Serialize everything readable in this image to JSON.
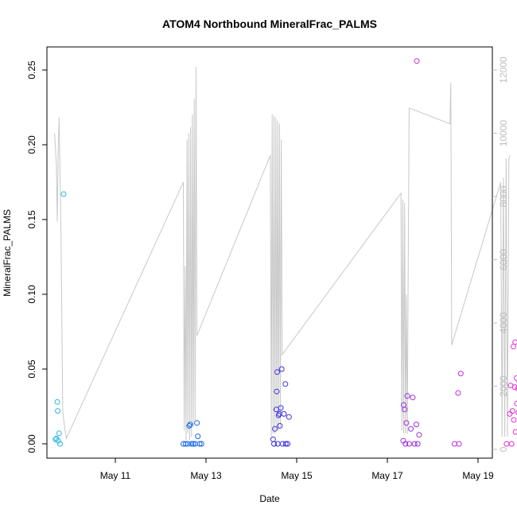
{
  "chart_data": {
    "type": "scatter",
    "title": "ATOM4 Northbound MineralFrac_PALMS",
    "xlabel": "Date",
    "ylabel": "MineralFrac_PALMS",
    "x_ticks": [
      "May 11",
      "May 13",
      "May 15",
      "May 17",
      "May 19"
    ],
    "ylim": [
      0,
      0.26
    ],
    "y_ticks": [
      0.0,
      0.05,
      0.1,
      0.15,
      0.2,
      0.25
    ],
    "y2lim": [
      0,
      12200
    ],
    "y2_ticks": [
      0,
      2000,
      4000,
      6000,
      8000,
      10000,
      12000
    ],
    "grid": false,
    "points": [
      {
        "x": 9.72,
        "y": 0.028,
        "color": "#2fb7e3"
      },
      {
        "x": 9.73,
        "y": 0.022,
        "color": "#2fb7e3"
      },
      {
        "x": 9.68,
        "y": 0.003,
        "color": "#2fb7e3"
      },
      {
        "x": 9.7,
        "y": 0.0035,
        "color": "#2fb7e3"
      },
      {
        "x": 9.74,
        "y": 0.002,
        "color": "#2fb7e3"
      },
      {
        "x": 9.76,
        "y": 0.007,
        "color": "#2fb7e3"
      },
      {
        "x": 9.78,
        "y": 0.0,
        "color": "#2fb7e3"
      },
      {
        "x": 9.86,
        "y": 0.167,
        "color": "#2fb7e3"
      },
      {
        "x": 12.5,
        "y": 0.0,
        "color": "#1a67e8"
      },
      {
        "x": 12.55,
        "y": 0.0,
        "color": "#1a67e8"
      },
      {
        "x": 12.6,
        "y": 0.0,
        "color": "#1a67e8"
      },
      {
        "x": 12.63,
        "y": 0.012,
        "color": "#1a67e8"
      },
      {
        "x": 12.65,
        "y": 0.013,
        "color": "#1a67e8"
      },
      {
        "x": 12.68,
        "y": 0.0,
        "color": "#1a67e8"
      },
      {
        "x": 12.72,
        "y": 0.0,
        "color": "#1a67e8"
      },
      {
        "x": 12.76,
        "y": 0.0,
        "color": "#1a67e8"
      },
      {
        "x": 12.8,
        "y": 0.014,
        "color": "#1a67e8"
      },
      {
        "x": 12.82,
        "y": 0.005,
        "color": "#1a67e8"
      },
      {
        "x": 12.86,
        "y": 0.0,
        "color": "#1a67e8"
      },
      {
        "x": 12.9,
        "y": 0.0,
        "color": "#1a67e8"
      },
      {
        "x": 14.48,
        "y": 0.003,
        "color": "#3a2fe0"
      },
      {
        "x": 14.5,
        "y": 0.0,
        "color": "#3a2fe0"
      },
      {
        "x": 14.52,
        "y": 0.01,
        "color": "#3a2fe0"
      },
      {
        "x": 14.55,
        "y": 0.023,
        "color": "#3a2fe0"
      },
      {
        "x": 14.56,
        "y": 0.035,
        "color": "#3a2fe0"
      },
      {
        "x": 14.57,
        "y": 0.048,
        "color": "#3a2fe0"
      },
      {
        "x": 14.58,
        "y": 0.0,
        "color": "#3a2fe0"
      },
      {
        "x": 14.6,
        "y": 0.019,
        "color": "#3a2fe0"
      },
      {
        "x": 14.62,
        "y": 0.02,
        "color": "#3a2fe0"
      },
      {
        "x": 14.63,
        "y": 0.012,
        "color": "#3a2fe0"
      },
      {
        "x": 14.65,
        "y": 0.024,
        "color": "#3a2fe0"
      },
      {
        "x": 14.67,
        "y": 0.05,
        "color": "#3a2fe0"
      },
      {
        "x": 14.69,
        "y": 0.0,
        "color": "#3a2fe0"
      },
      {
        "x": 14.72,
        "y": 0.02,
        "color": "#3a2fe0"
      },
      {
        "x": 14.75,
        "y": 0.04,
        "color": "#3a2fe0"
      },
      {
        "x": 14.76,
        "y": 0.0,
        "color": "#3a2fe0"
      },
      {
        "x": 14.8,
        "y": 0.0,
        "color": "#3a2fe0"
      },
      {
        "x": 14.83,
        "y": 0.018,
        "color": "#3a2fe0"
      },
      {
        "x": 17.36,
        "y": 0.026,
        "color": "#9a2fe3"
      },
      {
        "x": 17.38,
        "y": 0.023,
        "color": "#9a2fe3"
      },
      {
        "x": 17.35,
        "y": 0.002,
        "color": "#9a2fe3"
      },
      {
        "x": 17.4,
        "y": 0.0,
        "color": "#9a2fe3"
      },
      {
        "x": 17.42,
        "y": 0.014,
        "color": "#9a2fe3"
      },
      {
        "x": 17.44,
        "y": 0.032,
        "color": "#9a2fe3"
      },
      {
        "x": 17.48,
        "y": 0.0,
        "color": "#9a2fe3"
      },
      {
        "x": 17.52,
        "y": 0.01,
        "color": "#9a2fe3"
      },
      {
        "x": 17.56,
        "y": 0.031,
        "color": "#9a2fe3"
      },
      {
        "x": 17.6,
        "y": 0.0,
        "color": "#9a2fe3"
      },
      {
        "x": 17.64,
        "y": 0.013,
        "color": "#9a2fe3"
      },
      {
        "x": 17.67,
        "y": 0.0,
        "color": "#9a2fe3"
      },
      {
        "x": 17.7,
        "y": 0.006,
        "color": "#9a2fe3"
      },
      {
        "x": 17.65,
        "y": 0.256,
        "color": "#c22fe3"
      },
      {
        "x": 18.48,
        "y": 0.0,
        "color": "#c22fe3"
      },
      {
        "x": 18.56,
        "y": 0.034,
        "color": "#c22fe3"
      },
      {
        "x": 18.58,
        "y": 0.0,
        "color": "#c22fe3"
      },
      {
        "x": 18.62,
        "y": 0.047,
        "color": "#c22fe3"
      },
      {
        "x": 19.63,
        "y": 0.0,
        "color": "#e22fd0"
      },
      {
        "x": 19.7,
        "y": 0.02,
        "color": "#e22fd0"
      },
      {
        "x": 19.72,
        "y": 0.039,
        "color": "#e22fd0"
      },
      {
        "x": 19.74,
        "y": 0.0,
        "color": "#e22fd0"
      },
      {
        "x": 19.76,
        "y": 0.022,
        "color": "#e22fd0"
      },
      {
        "x": 19.78,
        "y": 0.065,
        "color": "#e22fd0"
      },
      {
        "x": 19.79,
        "y": 0.016,
        "color": "#e22fd0"
      },
      {
        "x": 19.81,
        "y": 0.038,
        "color": "#e22fd0"
      },
      {
        "x": 19.82,
        "y": 0.068,
        "color": "#e22fd0"
      },
      {
        "x": 19.83,
        "y": 0.008,
        "color": "#e22fd0"
      },
      {
        "x": 19.85,
        "y": 0.044,
        "color": "#e22fd0"
      },
      {
        "x": 19.86,
        "y": 0.027,
        "color": "#e22fd0"
      },
      {
        "x": 19.88,
        "y": 0.037,
        "color": "#e22fd0"
      },
      {
        "x": 19.89,
        "y": 0.021,
        "color": "#e22fd0"
      },
      {
        "x": 19.91,
        "y": 0.042,
        "color": "#e22fd0"
      },
      {
        "x": 19.92,
        "y": 0.035,
        "color": "#e22fd0"
      }
    ],
    "line_color": "#c8c8c8",
    "line": [
      [
        9.66,
        10000
      ],
      [
        9.7,
        9000
      ],
      [
        9.72,
        7200
      ],
      [
        9.74,
        9500
      ],
      [
        9.76,
        10500
      ],
      [
        9.8,
        7000
      ],
      [
        9.84,
        1200
      ],
      [
        9.88,
        700
      ],
      [
        9.92,
        350
      ],
      [
        12.5,
        8450
      ],
      [
        12.52,
        600
      ],
      [
        12.54,
        5800
      ],
      [
        12.56,
        300
      ],
      [
        12.58,
        9800
      ],
      [
        12.6,
        500
      ],
      [
        12.62,
        10000
      ],
      [
        12.64,
        300
      ],
      [
        12.66,
        10200
      ],
      [
        12.68,
        400
      ],
      [
        12.7,
        10600
      ],
      [
        12.72,
        700
      ],
      [
        12.74,
        11100
      ],
      [
        12.76,
        900
      ],
      [
        12.78,
        12100
      ],
      [
        12.8,
        3600
      ],
      [
        14.42,
        9300
      ],
      [
        14.44,
        400
      ],
      [
        14.46,
        10600
      ],
      [
        14.48,
        500
      ],
      [
        14.5,
        10550
      ],
      [
        14.52,
        500
      ],
      [
        14.54,
        10500
      ],
      [
        14.56,
        600
      ],
      [
        14.58,
        10400
      ],
      [
        14.6,
        600
      ],
      [
        14.62,
        10300
      ],
      [
        14.64,
        700
      ],
      [
        14.66,
        9800
      ],
      [
        14.68,
        3000
      ],
      [
        17.3,
        8100
      ],
      [
        17.32,
        600
      ],
      [
        17.34,
        7900
      ],
      [
        17.36,
        500
      ],
      [
        17.38,
        7800
      ],
      [
        17.4,
        500
      ],
      [
        17.42,
        4900
      ],
      [
        17.44,
        500
      ],
      [
        17.46,
        5600
      ],
      [
        17.48,
        10800
      ],
      [
        18.38,
        10300
      ],
      [
        18.4,
        11600
      ],
      [
        18.42,
        3300
      ],
      [
        19.5,
        8450
      ],
      [
        19.53,
        400
      ],
      [
        19.56,
        8600
      ],
      [
        19.59,
        400
      ],
      [
        19.62,
        9200
      ],
      [
        19.65,
        400
      ],
      [
        19.68,
        9200
      ],
      [
        19.71,
        9300
      ]
    ]
  }
}
